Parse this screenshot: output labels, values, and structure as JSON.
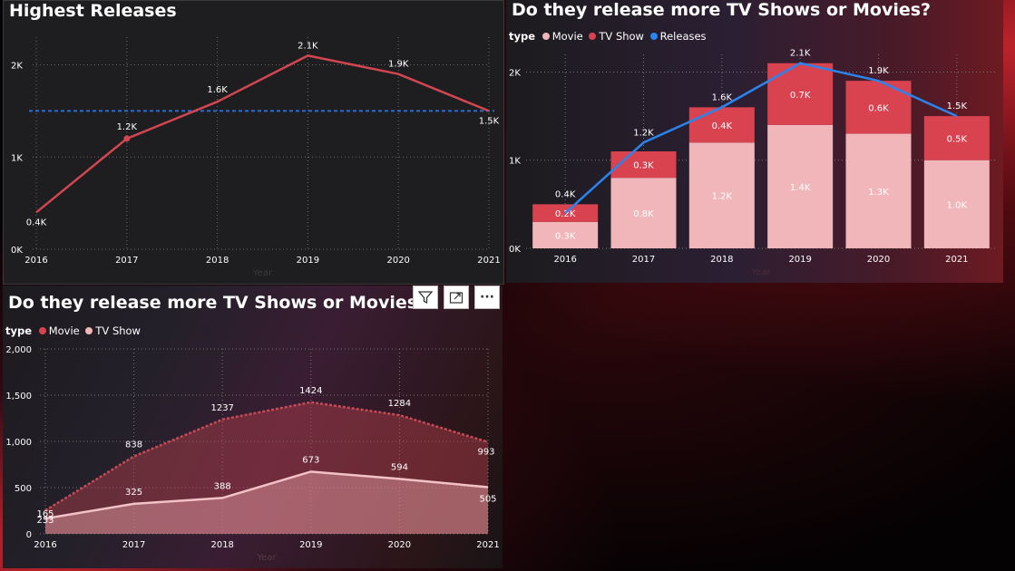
{
  "colors": {
    "movie": "#f0b6ba",
    "tvshow": "#d9434f",
    "releases": "#2a84f0",
    "line": "#d14650",
    "refline": "#2a6ccf",
    "grid": "#6a6a6a"
  },
  "panel1": {
    "title": "Highest Releases",
    "chart_data": {
      "type": "line",
      "title": "Highest Releases",
      "x": [
        "2016",
        "2017",
        "2018",
        "2019",
        "2020",
        "2021"
      ],
      "values": [
        0.4,
        1.2,
        1.6,
        2.1,
        1.9,
        1.5
      ],
      "data_labels": [
        "0.4K",
        "1.2K",
        "1.6K",
        "2.1K",
        "1.9K",
        "1.5K"
      ],
      "y_ticks": [
        "0K",
        "1K",
        "2K"
      ],
      "ylim": [
        0,
        2.3
      ],
      "reference_line": 1.5,
      "xlabel": "Year",
      "grid": true
    }
  },
  "panel2": {
    "title": "Do they release more TV Shows or Movies?",
    "legend": {
      "label": "type",
      "items": [
        "Movie",
        "TV Show",
        "Releases"
      ]
    },
    "chart_data": {
      "type": "bar",
      "stacked": true,
      "categories": [
        "2016",
        "2017",
        "2018",
        "2019",
        "2020",
        "2021"
      ],
      "series": [
        {
          "name": "Movie",
          "values": [
            0.3,
            0.8,
            1.2,
            1.4,
            1.3,
            1.0
          ],
          "labels": [
            "0.3K",
            "0.8K",
            "1.2K",
            "1.4K",
            "1.3K",
            "1.0K"
          ]
        },
        {
          "name": "TV Show",
          "values": [
            0.2,
            0.3,
            0.4,
            0.7,
            0.6,
            0.5
          ],
          "labels": [
            "0.2K",
            "0.3K",
            "0.4K",
            "0.7K",
            "0.6K",
            "0.5K"
          ]
        },
        {
          "name": "Releases",
          "type": "line",
          "values": [
            0.4,
            1.2,
            1.6,
            2.1,
            1.9,
            1.5
          ],
          "labels": [
            "0.4K",
            "1.2K",
            "1.6K",
            "2.1K",
            "1.9K",
            "1.5K"
          ]
        }
      ],
      "y_ticks": [
        "0K",
        "1K",
        "2K"
      ],
      "ylim": [
        0,
        2.2
      ],
      "xlabel": "Year",
      "grid": true
    }
  },
  "panel3": {
    "title": "Do they release more TV Shows or Movies?",
    "legend": {
      "label": "type",
      "items": [
        "Movie",
        "TV Show"
      ]
    },
    "chart_data": {
      "type": "area",
      "x": [
        "2016",
        "2017",
        "2018",
        "2019",
        "2020",
        "2021"
      ],
      "series": [
        {
          "name": "Movie",
          "values": [
            253,
            838,
            1237,
            1424,
            1284,
            993
          ]
        },
        {
          "name": "TV Show",
          "values": [
            165,
            325,
            388,
            673,
            594,
            505
          ]
        }
      ],
      "y_ticks": [
        "0",
        "500",
        "1,000",
        "1,500",
        "2,000"
      ],
      "ylim": [
        0,
        2000
      ],
      "xlabel": "Year",
      "grid": true
    }
  },
  "toolbar": {
    "icons": [
      "filter-icon",
      "focus-mode-icon",
      "more-options-icon"
    ],
    "more_label": "···"
  }
}
